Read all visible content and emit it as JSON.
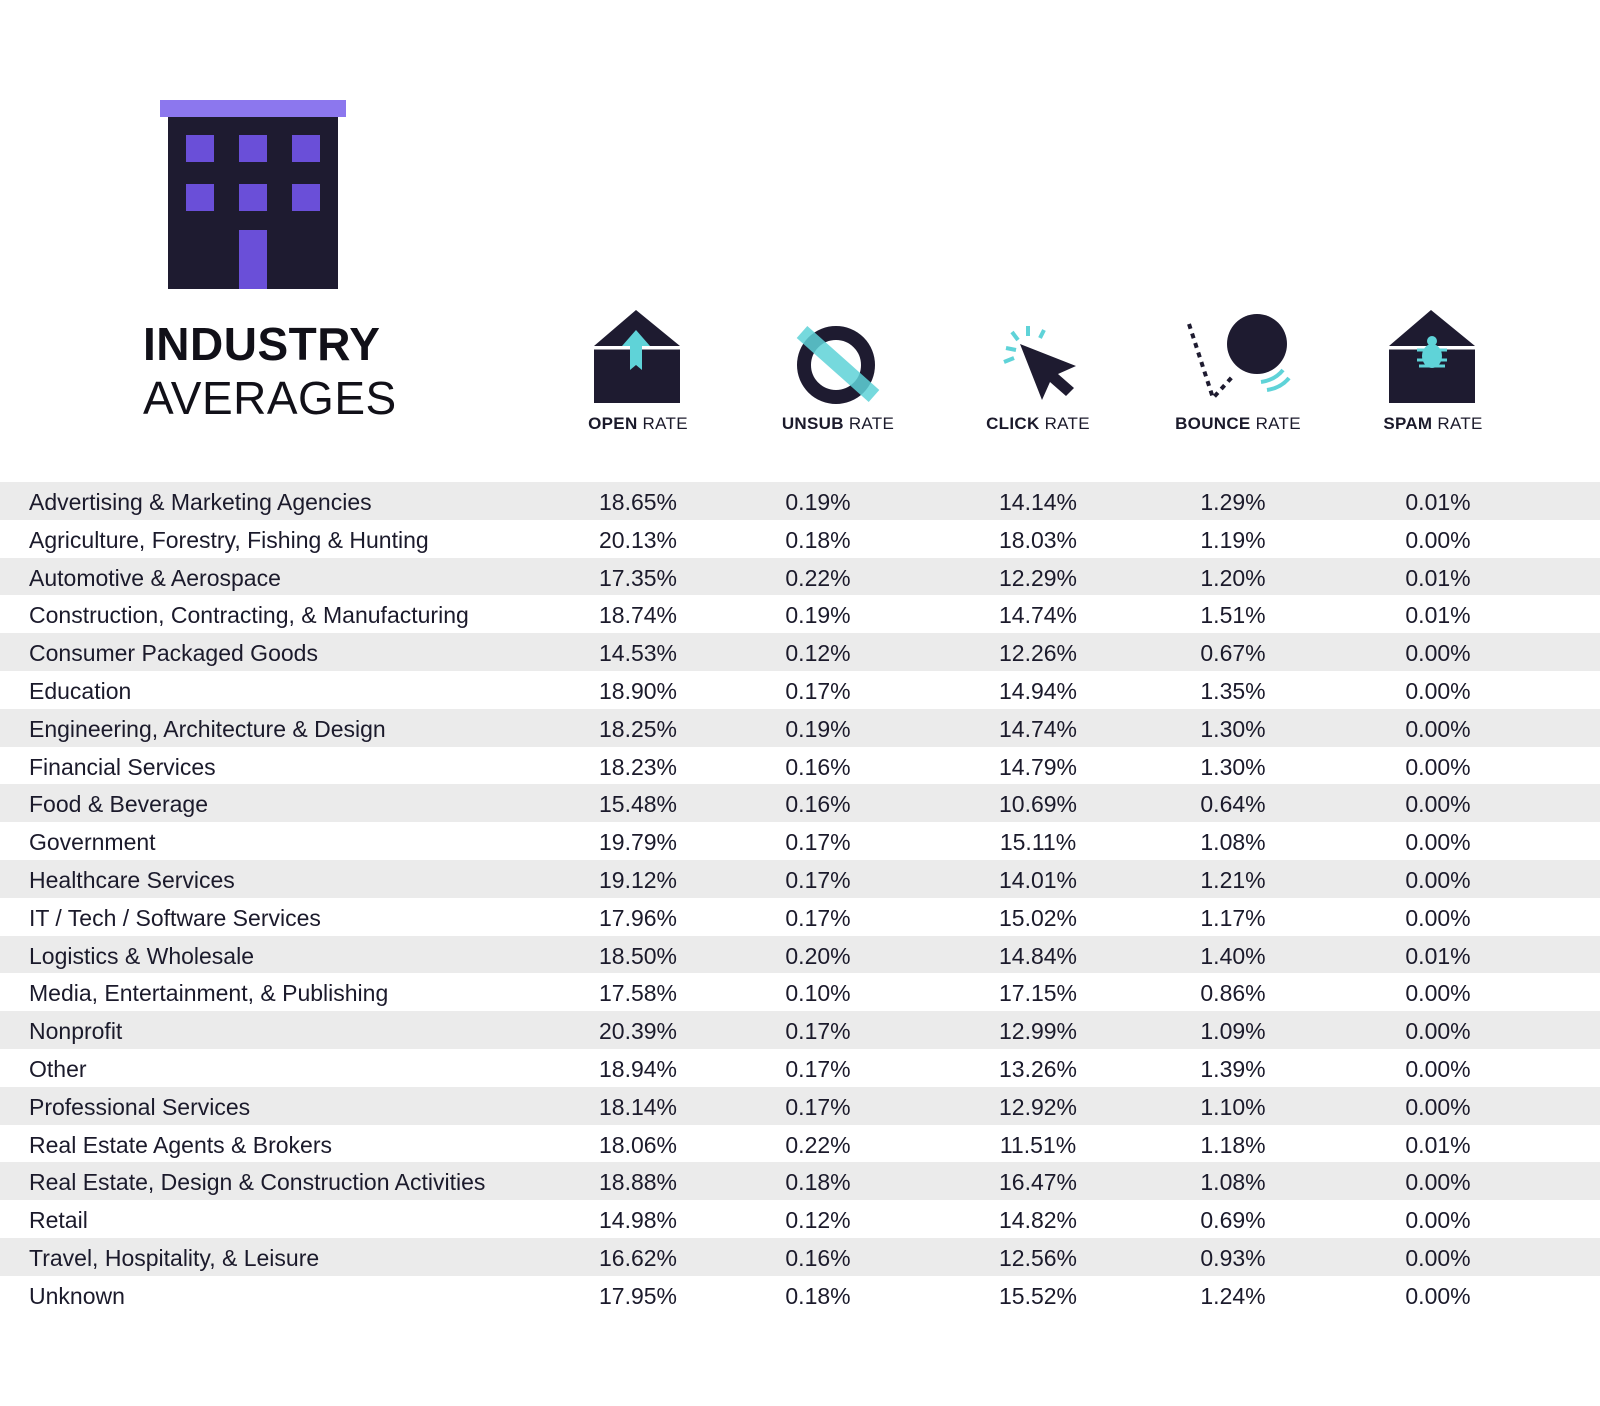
{
  "title": {
    "main": "INDUSTRY",
    "sub": "AVERAGES"
  },
  "colors": {
    "dark": "#1e1b30",
    "purple": "#6a4fd8",
    "purple_light": "#8c77ee",
    "teal": "#5fd3d8",
    "row_shade": "#ebebeb"
  },
  "columns": [
    {
      "key": "open",
      "bold": "OPEN",
      "rest": " RATE",
      "icon": "envelope-open-icon"
    },
    {
      "key": "unsub",
      "bold": "UNSUB",
      "rest": " RATE",
      "icon": "unsubscribe-icon"
    },
    {
      "key": "click",
      "bold": "CLICK",
      "rest": " RATE",
      "icon": "cursor-click-icon"
    },
    {
      "key": "bounce",
      "bold": "BOUNCE",
      "rest": " RATE",
      "icon": "bounce-ball-icon"
    },
    {
      "key": "spam",
      "bold": "SPAM",
      "rest": " RATE",
      "icon": "envelope-bug-icon"
    }
  ],
  "chart_data": {
    "type": "table",
    "title": "INDUSTRY AVERAGES",
    "columns": [
      "OPEN RATE",
      "UNSUB RATE",
      "CLICK RATE",
      "BOUNCE RATE",
      "SPAM RATE"
    ],
    "rows": [
      {
        "industry": "Advertising & Marketing Agencies",
        "values": [
          "18.65%",
          "0.19%",
          "14.14%",
          "1.29%",
          "0.01%"
        ]
      },
      {
        "industry": "Agriculture, Forestry, Fishing & Hunting",
        "values": [
          "20.13%",
          "0.18%",
          "18.03%",
          "1.19%",
          "0.00%"
        ]
      },
      {
        "industry": "Automotive & Aerospace",
        "values": [
          "17.35%",
          "0.22%",
          "12.29%",
          "1.20%",
          "0.01%"
        ]
      },
      {
        "industry": "Construction, Contracting, & Manufacturing",
        "values": [
          "18.74%",
          "0.19%",
          "14.74%",
          "1.51%",
          "0.01%"
        ]
      },
      {
        "industry": "Consumer Packaged Goods",
        "values": [
          "14.53%",
          "0.12%",
          "12.26%",
          "0.67%",
          "0.00%"
        ]
      },
      {
        "industry": "Education",
        "values": [
          "18.90%",
          "0.17%",
          "14.94%",
          "1.35%",
          "0.00%"
        ]
      },
      {
        "industry": "Engineering, Architecture & Design",
        "values": [
          "18.25%",
          "0.19%",
          "14.74%",
          "1.30%",
          "0.00%"
        ]
      },
      {
        "industry": "Financial Services",
        "values": [
          "18.23%",
          "0.16%",
          "14.79%",
          "1.30%",
          "0.00%"
        ]
      },
      {
        "industry": "Food & Beverage",
        "values": [
          "15.48%",
          "0.16%",
          "10.69%",
          "0.64%",
          "0.00%"
        ]
      },
      {
        "industry": "Government",
        "values": [
          "19.79%",
          "0.17%",
          "15.11%",
          "1.08%",
          "0.00%"
        ]
      },
      {
        "industry": "Healthcare Services",
        "values": [
          "19.12%",
          "0.17%",
          "14.01%",
          "1.21%",
          "0.00%"
        ]
      },
      {
        "industry": "IT / Tech / Software Services",
        "values": [
          "17.96%",
          "0.17%",
          "15.02%",
          "1.17%",
          "0.00%"
        ]
      },
      {
        "industry": "Logistics & Wholesale",
        "values": [
          "18.50%",
          "0.20%",
          "14.84%",
          "1.40%",
          "0.01%"
        ]
      },
      {
        "industry": "Media, Entertainment, & Publishing",
        "values": [
          "17.58%",
          "0.10%",
          "17.15%",
          "0.86%",
          "0.00%"
        ]
      },
      {
        "industry": "Nonprofit",
        "values": [
          "20.39%",
          "0.17%",
          "12.99%",
          "1.09%",
          "0.00%"
        ]
      },
      {
        "industry": "Other",
        "values": [
          "18.94%",
          "0.17%",
          "13.26%",
          "1.39%",
          "0.00%"
        ]
      },
      {
        "industry": "Professional Services",
        "values": [
          "18.14%",
          "0.17%",
          "12.92%",
          "1.10%",
          "0.00%"
        ]
      },
      {
        "industry": "Real Estate Agents & Brokers",
        "values": [
          "18.06%",
          "0.22%",
          "11.51%",
          "1.18%",
          "0.01%"
        ]
      },
      {
        "industry": "Real Estate, Design & Construction Activities",
        "values": [
          "18.88%",
          "0.18%",
          "16.47%",
          "1.08%",
          "0.00%"
        ]
      },
      {
        "industry": "Retail",
        "values": [
          "14.98%",
          "0.12%",
          "14.82%",
          "0.69%",
          "0.00%"
        ]
      },
      {
        "industry": "Travel, Hospitality, & Leisure",
        "values": [
          "16.62%",
          "0.16%",
          "12.56%",
          "0.93%",
          "0.00%"
        ]
      },
      {
        "industry": "Unknown",
        "values": [
          "17.95%",
          "0.18%",
          "15.52%",
          "1.24%",
          "0.00%"
        ]
      }
    ]
  }
}
